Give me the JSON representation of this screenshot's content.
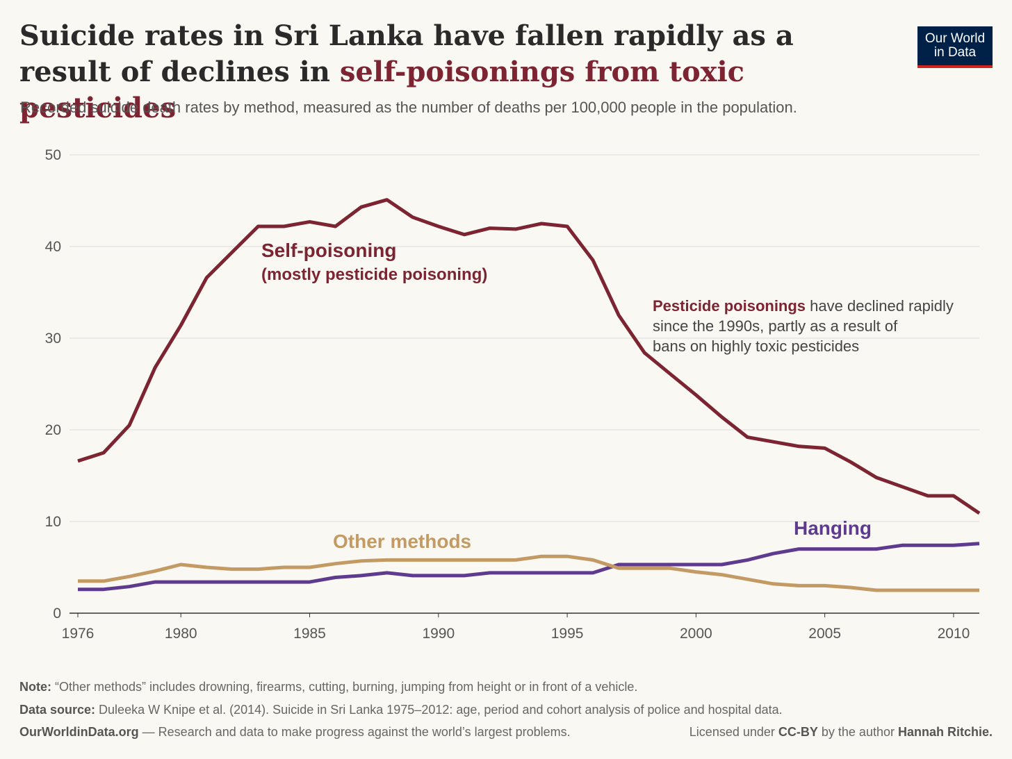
{
  "header": {
    "title_part1": "Suicide rates in Sri Lanka have fallen rapidly as a result of declines in ",
    "title_highlight": "self-poisonings from toxic pesticides",
    "subtitle": "Recorded suicide death rates by method, measured as the number of deaths per 100,000 people in the population."
  },
  "logo": {
    "line1": "Our World",
    "line2": "in Data"
  },
  "annotation": {
    "bold": "Pesticide poisonings",
    "line1_rest": " have declined rapidly",
    "line2": "since the 1990s, partly as a result of",
    "line3": "bans on highly toxic pesticides"
  },
  "footer": {
    "note_label": "Note:",
    "note_text": " “Other methods” includes drowning, firearms, cutting, burning, jumping from height or in front of a vehicle.",
    "source_label": "Data source:",
    "source_text": " Duleeka W Knipe et al. (2014). Suicide in Sri Lanka 1975–2012: age, period and cohort analysis of police and hospital data.",
    "site": "OurWorldinData.org",
    "site_tagline": " — Research and data to make progress against the world’s largest problems.",
    "license_pre": "Licensed under ",
    "license": "CC-BY",
    "license_mid": " by the author ",
    "author": "Hannah Ritchie."
  },
  "colors": {
    "self_poisoning": "#7c2431",
    "hanging": "#5f3b8f",
    "other": "#c49a64",
    "grid": "#dddddd",
    "axis_text": "#555555"
  },
  "chart_data": {
    "type": "line",
    "title": "Suicide rates in Sri Lanka have fallen rapidly as a result of declines in self-poisonings from toxic pesticides",
    "xlabel": "",
    "ylabel": "",
    "ylim": [
      0,
      50
    ],
    "xlim": [
      1976,
      2011
    ],
    "xticks": [
      1976,
      1980,
      1985,
      1990,
      1995,
      2000,
      2005,
      2010
    ],
    "yticks": [
      0,
      10,
      20,
      30,
      40,
      50
    ],
    "grid": true,
    "x": [
      1976,
      1977,
      1978,
      1979,
      1980,
      1981,
      1982,
      1983,
      1984,
      1985,
      1986,
      1987,
      1988,
      1989,
      1990,
      1991,
      1992,
      1993,
      1994,
      1995,
      1996,
      1997,
      1998,
      1999,
      2000,
      2001,
      2002,
      2003,
      2004,
      2005,
      2006,
      2007,
      2008,
      2009,
      2010,
      2011
    ],
    "series": [
      {
        "name": "Self-poisoning",
        "sublabel": "(mostly pesticide poisoning)",
        "color_key": "self_poisoning",
        "values": [
          16.6,
          17.5,
          20.5,
          26.8,
          31.4,
          36.6,
          39.4,
          42.2,
          42.2,
          42.7,
          42.2,
          44.3,
          45.1,
          43.2,
          42.2,
          41.3,
          42.0,
          41.9,
          42.5,
          42.2,
          38.5,
          32.5,
          28.4,
          26.1,
          23.8,
          21.4,
          19.2,
          18.7,
          18.2,
          18.0,
          16.5,
          14.8,
          13.8,
          12.8,
          12.8,
          10.9
        ]
      },
      {
        "name": "Hanging",
        "color_key": "hanging",
        "values": [
          2.6,
          2.6,
          2.9,
          3.4,
          3.4,
          3.4,
          3.4,
          3.4,
          3.4,
          3.4,
          3.9,
          4.1,
          4.4,
          4.1,
          4.1,
          4.1,
          4.4,
          4.4,
          4.4,
          4.4,
          4.4,
          5.3,
          5.3,
          5.3,
          5.3,
          5.3,
          5.8,
          6.5,
          7.0,
          7.0,
          7.0,
          7.0,
          7.4,
          7.4,
          7.4,
          7.6
        ]
      },
      {
        "name": "Other methods",
        "color_key": "other",
        "values": [
          3.5,
          3.5,
          4.0,
          4.6,
          5.3,
          5.0,
          4.8,
          4.8,
          5.0,
          5.0,
          5.4,
          5.7,
          5.8,
          5.8,
          5.8,
          5.8,
          5.8,
          5.8,
          6.2,
          6.2,
          5.8,
          4.9,
          4.9,
          4.9,
          4.5,
          4.2,
          3.7,
          3.2,
          3.0,
          3.0,
          2.8,
          2.5,
          2.5,
          2.5,
          2.5,
          2.5
        ]
      }
    ]
  }
}
